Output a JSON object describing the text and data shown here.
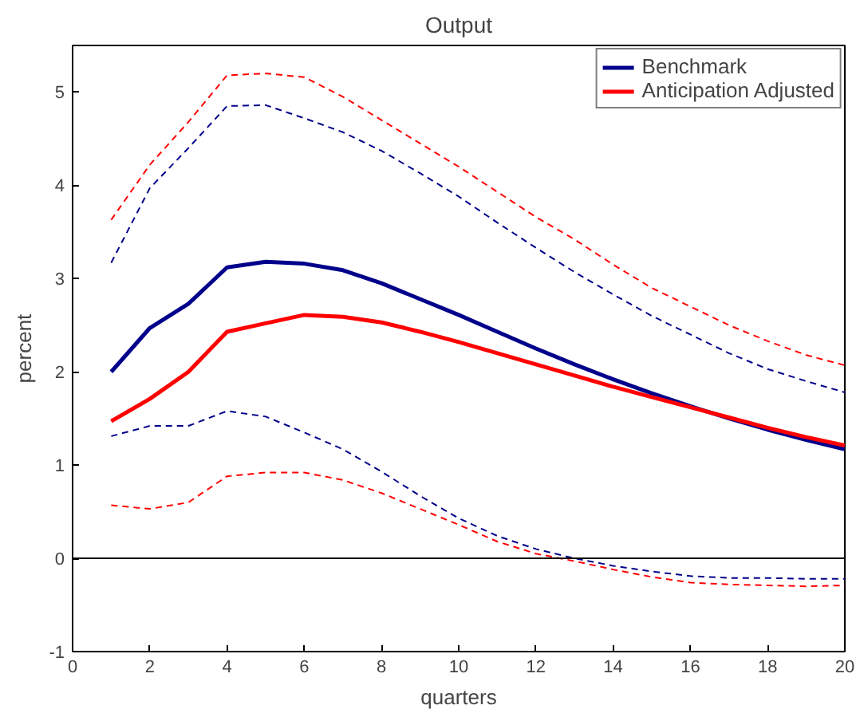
{
  "chart_data": {
    "type": "line",
    "title": "Output",
    "xlabel": "quarters",
    "ylabel": "percent",
    "x": [
      1,
      2,
      3,
      4,
      5,
      6,
      7,
      8,
      9,
      10,
      11,
      12,
      13,
      14,
      15,
      16,
      17,
      18,
      19,
      20
    ],
    "series": [
      {
        "name": "Benchmark",
        "color": "#00008b",
        "line_style": "solid",
        "values": [
          2.0,
          2.47,
          2.73,
          3.12,
          3.18,
          3.16,
          3.09,
          2.95,
          2.78,
          2.61,
          2.43,
          2.25,
          2.08,
          1.92,
          1.77,
          1.63,
          1.5,
          1.38,
          1.27,
          1.17
        ]
      },
      {
        "name": "Anticipation Adjusted",
        "color": "#ff0000",
        "line_style": "solid",
        "values": [
          1.47,
          1.71,
          2.0,
          2.43,
          2.52,
          2.61,
          2.59,
          2.53,
          2.43,
          2.32,
          2.2,
          2.08,
          1.96,
          1.84,
          1.73,
          1.62,
          1.51,
          1.4,
          1.3,
          1.21
        ]
      },
      {
        "color": "#00008b",
        "line_style": "dashed",
        "values": [
          3.17,
          3.97,
          4.4,
          4.85,
          4.86,
          4.72,
          4.57,
          4.37,
          4.13,
          3.88,
          3.6,
          3.33,
          3.07,
          2.83,
          2.6,
          2.4,
          2.2,
          2.03,
          1.9,
          1.78
        ]
      },
      {
        "color": "#00008b",
        "line_style": "dashed",
        "values": [
          1.31,
          1.42,
          1.42,
          1.58,
          1.52,
          1.35,
          1.17,
          0.93,
          0.67,
          0.43,
          0.24,
          0.1,
          0.0,
          -0.08,
          -0.14,
          -0.19,
          -0.21,
          -0.21,
          -0.22,
          -0.22
        ]
      },
      {
        "color": "#ff0000",
        "line_style": "dashed",
        "values": [
          3.63,
          4.22,
          4.68,
          5.18,
          5.2,
          5.16,
          4.95,
          4.7,
          4.45,
          4.2,
          3.93,
          3.66,
          3.42,
          3.15,
          2.9,
          2.7,
          2.5,
          2.33,
          2.18,
          2.07
        ]
      },
      {
        "color": "#ff0000",
        "line_style": "dashed",
        "values": [
          0.57,
          0.53,
          0.6,
          0.88,
          0.92,
          0.92,
          0.84,
          0.7,
          0.53,
          0.36,
          0.18,
          0.05,
          -0.03,
          -0.12,
          -0.2,
          -0.26,
          -0.28,
          -0.29,
          -0.3,
          -0.29
        ]
      }
    ],
    "xlim": [
      0,
      20
    ],
    "xticks": [
      0,
      2,
      4,
      6,
      8,
      10,
      12,
      14,
      16,
      18,
      20
    ],
    "ylim": [
      -1,
      5.5
    ],
    "yticks": [
      -1,
      0,
      1,
      2,
      3,
      4,
      5
    ],
    "ref_lines": [
      {
        "axis": "y",
        "value": 0,
        "color": "#000000"
      }
    ],
    "grid": false,
    "legend": "top right"
  }
}
